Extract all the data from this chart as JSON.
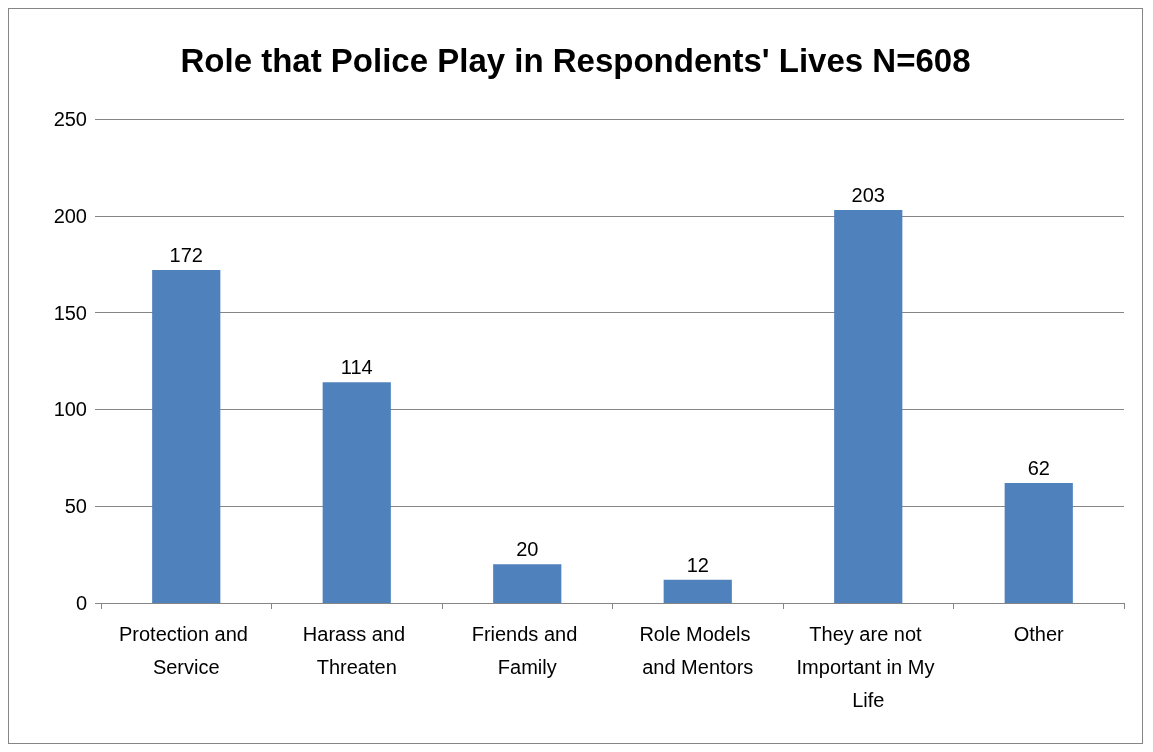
{
  "chart_data": {
    "type": "bar",
    "title": "Role that Police Play in Respondents' Lives N=608",
    "categories": [
      "Protection and Service",
      "Harass and Threaten",
      "Friends and Family",
      "Role Models and Mentors",
      "They are not Important in My Life",
      "Other"
    ],
    "values": [
      172,
      114,
      20,
      12,
      203,
      62
    ],
    "color": "#4f81bd",
    "ylim": [
      0,
      250
    ],
    "yticks": [
      0,
      50,
      100,
      150,
      200,
      250
    ],
    "grid": "y",
    "data_labels": true
  }
}
